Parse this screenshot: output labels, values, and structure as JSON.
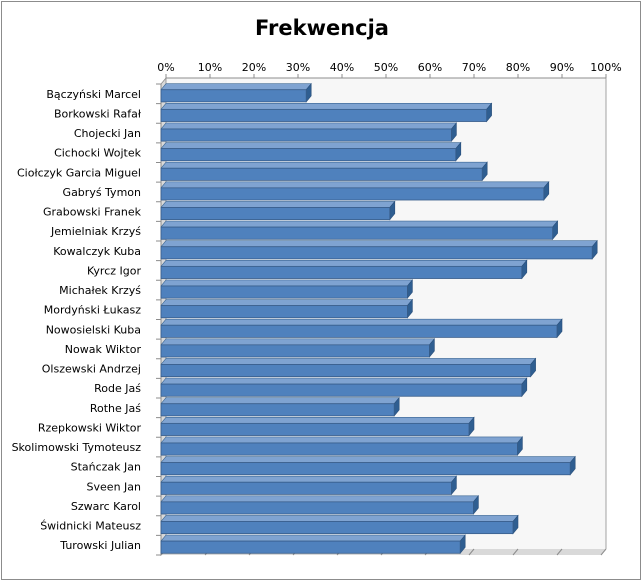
{
  "chart_data": {
    "type": "bar",
    "orientation": "horizontal",
    "title": "Frekwencja",
    "xlabel": "",
    "ylabel": "",
    "xlim": [
      0,
      100
    ],
    "ticks": [
      "0%",
      "10%",
      "20%",
      "30%",
      "40%",
      "50%",
      "60%",
      "70%",
      "80%",
      "90%",
      "100%"
    ],
    "tick_position": "top",
    "grid": false,
    "style": "3d",
    "bar_color": "#4f81bd",
    "categories": [
      "Bączyński Marcel",
      "Borkowski Rafał",
      "Chojecki Jan",
      "Cichocki Wojtek",
      "Ciołczyk Garcia Miguel",
      "Gabryś Tymon",
      "Grabowski Franek",
      "Jemielniak Krzyś",
      "Kowalczyk Kuba",
      "Kyrcz Igor",
      "Michałek Krzyś",
      "Mordyński Łukasz",
      "Nowosielski Kuba",
      "Nowak Wiktor",
      "Olszewski Andrzej",
      "Rode Jaś",
      "Rothe Jaś",
      "Rzepkowski Wiktor",
      "Skolimowski Tymoteusz",
      "Stańczak Jan",
      "Sveen Jan",
      "Szwarc Karol",
      "Świdnicki Mateusz",
      "Turowski Julian"
    ],
    "values": [
      33,
      74,
      66,
      67,
      73,
      87,
      52,
      89,
      98,
      82,
      56,
      56,
      90,
      61,
      84,
      82,
      53,
      70,
      81,
      93,
      66,
      71,
      80,
      68
    ]
  }
}
